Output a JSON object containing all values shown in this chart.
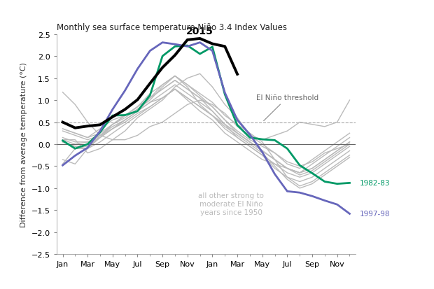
{
  "title": "Monthly sea surface temperature Niño 3.4 Index Values",
  "ylabel": "Difference from average temperature (°C)",
  "ylim": [
    -2.5,
    2.5
  ],
  "yticks": [
    -2.5,
    -2.0,
    -1.5,
    -1.0,
    -0.5,
    0.0,
    0.5,
    1.0,
    1.5,
    2.0,
    2.5
  ],
  "xtick_labels": [
    "Jan",
    "Mar",
    "May",
    "Jul",
    "Sep",
    "Nov",
    "Jan",
    "Mar",
    "May",
    "Jul",
    "Sep",
    "Nov"
  ],
  "el_nino_threshold": 0.5,
  "threshold_label": "El Niño threshold",
  "background_color": "#ffffff",
  "gray_color": "#bbbbbb",
  "green_color": "#009966",
  "purple_color": "#6666bb",
  "black_color": "#000000",
  "zero_line_color": "#666666",
  "threshold_line_color": "#aaaaaa",
  "label_1982": "1982-83",
  "label_1997": "1997-98",
  "label_other": "all other strong to\nmoderate El Niño\nyears since 1950",
  "series_2015": [
    0.5,
    0.37,
    0.41,
    0.44,
    0.62,
    0.79,
    1.01,
    1.38,
    1.74,
    2.02,
    2.37,
    2.4,
    2.28,
    2.22,
    1.59
  ],
  "x_2015": [
    0,
    1,
    2,
    3,
    4,
    5,
    6,
    7,
    8,
    9,
    10,
    11,
    12,
    13,
    14
  ],
  "series_1982": [
    0.08,
    -0.1,
    0.0,
    0.27,
    0.65,
    0.66,
    0.75,
    1.11,
    2.0,
    2.22,
    2.24,
    2.05,
    2.21,
    1.13,
    0.43,
    0.15,
    0.11,
    0.09,
    -0.1,
    -0.48,
    -0.66,
    -0.85,
    -0.9,
    -0.88
  ],
  "x_1982": [
    0,
    1,
    2,
    3,
    4,
    5,
    6,
    7,
    8,
    9,
    10,
    11,
    12,
    13,
    14,
    15,
    16,
    17,
    18,
    19,
    20,
    21,
    22,
    23
  ],
  "series_1997": [
    -0.48,
    -0.26,
    -0.08,
    0.3,
    0.79,
    1.22,
    1.71,
    2.12,
    2.31,
    2.27,
    2.22,
    2.31,
    2.12,
    1.17,
    0.55,
    0.22,
    -0.18,
    -0.68,
    -1.07,
    -1.1,
    -1.18,
    -1.28,
    -1.37,
    -1.58
  ],
  "x_1997": [
    0,
    1,
    2,
    3,
    4,
    5,
    6,
    7,
    8,
    9,
    10,
    11,
    12,
    13,
    14,
    15,
    16,
    17,
    18,
    19,
    20,
    21,
    22,
    23
  ],
  "other_series": [
    [
      1.18,
      0.9,
      0.5,
      0.2,
      0.1,
      0.1,
      0.2,
      0.4,
      0.5,
      0.7,
      0.9,
      1.0,
      0.9,
      0.7,
      0.4,
      0.2,
      0.1,
      0.2,
      0.3,
      0.5,
      0.45,
      0.4,
      0.5,
      1.0
    ],
    [
      0.1,
      0.1,
      -0.2,
      -0.1,
      0.1,
      0.3,
      0.6,
      0.8,
      1.0,
      1.3,
      1.5,
      1.6,
      1.3,
      0.9,
      0.6,
      0.2,
      0.0,
      -0.2,
      -0.4,
      -0.5,
      -0.4,
      -0.2,
      -0.1,
      0.0
    ],
    [
      0.1,
      0.0,
      0.05,
      0.2,
      0.4,
      0.55,
      0.75,
      1.05,
      1.35,
      1.55,
      1.35,
      1.1,
      0.85,
      0.55,
      0.3,
      0.1,
      -0.05,
      -0.2,
      -0.45,
      -0.55,
      -0.35,
      -0.15,
      0.05,
      0.25
    ],
    [
      0.3,
      0.2,
      0.1,
      0.2,
      0.35,
      0.5,
      0.7,
      0.85,
      1.05,
      1.25,
      1.0,
      0.75,
      0.55,
      0.25,
      0.05,
      -0.15,
      -0.35,
      -0.45,
      -0.55,
      -0.65,
      -0.55,
      -0.35,
      -0.15,
      0.05
    ],
    [
      0.35,
      0.25,
      0.15,
      0.25,
      0.45,
      0.65,
      0.85,
      1.05,
      1.25,
      1.45,
      1.25,
      1.05,
      0.75,
      0.45,
      0.25,
      0.05,
      -0.15,
      -0.35,
      -0.55,
      -0.65,
      -0.45,
      -0.25,
      -0.05,
      0.15
    ],
    [
      -0.35,
      -0.45,
      -0.1,
      0.15,
      0.45,
      0.65,
      0.85,
      1.05,
      1.25,
      1.45,
      1.25,
      1.05,
      0.85,
      0.55,
      0.25,
      0.05,
      -0.15,
      -0.35,
      -0.55,
      -0.65,
      -0.55,
      -0.35,
      -0.15,
      0.05
    ],
    [
      0.05,
      -0.05,
      -0.05,
      0.15,
      0.35,
      0.55,
      0.75,
      0.95,
      1.15,
      1.35,
      1.15,
      0.95,
      0.75,
      0.45,
      0.15,
      -0.05,
      -0.25,
      -0.45,
      -0.65,
      -0.75,
      -0.65,
      -0.45,
      -0.25,
      -0.05
    ],
    [
      0.15,
      0.05,
      0.05,
      0.15,
      0.35,
      0.55,
      0.75,
      0.95,
      1.05,
      1.25,
      1.05,
      0.85,
      0.65,
      0.35,
      0.15,
      -0.05,
      -0.25,
      -0.55,
      -0.75,
      -0.85,
      -0.75,
      -0.55,
      -0.35,
      -0.15
    ],
    [
      -0.45,
      -0.1,
      -0.1,
      0.2,
      0.45,
      0.6,
      0.8,
      1.0,
      1.3,
      1.55,
      1.3,
      0.9,
      0.65,
      0.4,
      0.2,
      0.0,
      -0.2,
      -0.5,
      -0.8,
      -1.0,
      -0.9,
      -0.7,
      -0.5,
      -0.3
    ],
    [
      0.05,
      -0.05,
      -0.1,
      0.05,
      0.25,
      0.45,
      0.65,
      0.85,
      1.05,
      1.25,
      1.05,
      0.85,
      0.65,
      0.45,
      0.25,
      0.05,
      -0.15,
      -0.35,
      -0.55,
      -0.7,
      -0.6,
      -0.4,
      -0.2,
      0.0
    ],
    [
      0.35,
      0.25,
      0.15,
      0.35,
      0.55,
      0.65,
      0.85,
      1.15,
      1.35,
      1.55,
      1.35,
      1.15,
      0.95,
      0.65,
      0.45,
      0.25,
      0.05,
      -0.35,
      -0.75,
      -0.95,
      -0.85,
      -0.65,
      -0.45,
      -0.25
    ]
  ]
}
